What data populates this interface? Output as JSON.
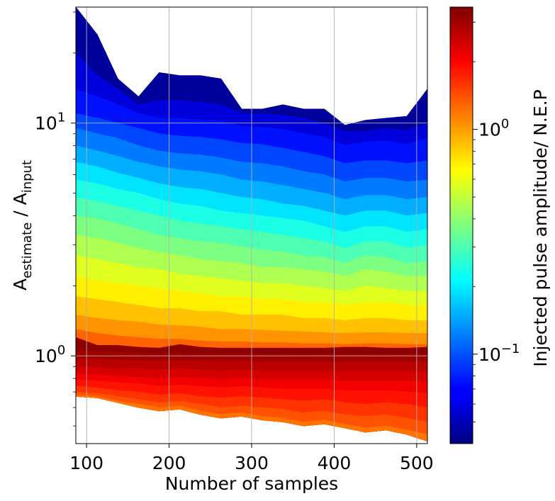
{
  "chart_data": {
    "type": "contour",
    "xlabel": "Number of samples",
    "ylabel": {
      "base": "A",
      "sub1": "estimate",
      "mid": " / A",
      "sub2": "input"
    },
    "x_ticks": [
      100,
      200,
      300,
      400,
      500
    ],
    "x_tick_labels": [
      "100",
      "200",
      "300",
      "400",
      "500"
    ],
    "xlim": [
      87,
      513
    ],
    "ylim": [
      0.42,
      31.5
    ],
    "yscale": "log",
    "y_ticks": [
      1,
      10
    ],
    "y_tick_labels": [
      {
        "base": "10",
        "exp": "0"
      },
      {
        "base": "10",
        "exp": "1"
      }
    ],
    "grid": true,
    "colorbar": {
      "label": "Injected pulse amplitude/ N.E.P",
      "scale": "log",
      "range": [
        0.04,
        3.5
      ],
      "colormap": "jet",
      "tick_labels": [
        {
          "base": "10",
          "exp": "0",
          "value": 1.0
        },
        {
          "base": "10",
          "exp": "−1",
          "value": 0.1
        }
      ]
    },
    "x": [
      87,
      113,
      138,
      163,
      188,
      213,
      238,
      263,
      288,
      313,
      338,
      363,
      388,
      413,
      438,
      463,
      488,
      513
    ],
    "upper_boundary": [
      31.5,
      24,
      15.5,
      13,
      16.5,
      16,
      16,
      15.5,
      11.5,
      11.5,
      12,
      11.5,
      11.5,
      9.8,
      10.3,
      10.5,
      10.7,
      14
    ],
    "lower_boundary": [
      0.67,
      0.66,
      0.63,
      0.6,
      0.58,
      0.59,
      0.56,
      0.54,
      0.55,
      0.53,
      0.52,
      0.5,
      0.51,
      0.49,
      0.47,
      0.48,
      0.46,
      0.43
    ],
    "clip_level": [
      1.2,
      1.11,
      1.11,
      1.09,
      1.08,
      1.12,
      1.09,
      1.08,
      1.08,
      1.08,
      1.08,
      1.08,
      1.08,
      1.09,
      1.09,
      1.08,
      1.08,
      1.09
    ],
    "contour_levels": [
      {
        "amp": 0.045,
        "y": [
          31.5,
          24,
          15.5,
          13,
          16.5,
          16,
          16,
          15.5,
          11.5,
          11.5,
          12,
          11.5,
          11.5,
          9.8,
          10.3,
          10.5,
          10.7,
          14
        ]
      },
      {
        "amp": 0.06,
        "y": [
          20,
          16,
          14,
          12,
          12.5,
          12.5,
          12.3,
          12,
          11,
          11,
          10.8,
          10.5,
          10,
          9.2,
          9.2,
          9.5,
          9.3,
          10
        ]
      },
      {
        "amp": 0.075,
        "y": [
          14,
          13,
          12,
          11,
          10.5,
          10.5,
          10.3,
          10.2,
          9.7,
          9.6,
          9.4,
          9,
          8.7,
          8,
          8.3,
          8.4,
          8.1,
          8.6
        ]
      },
      {
        "amp": 0.095,
        "y": [
          11,
          10.5,
          10,
          9.5,
          9,
          8.8,
          8.7,
          8.5,
          8.2,
          8.1,
          7.8,
          7.5,
          7.2,
          6.7,
          6.9,
          6.9,
          6.7,
          6.9
        ]
      },
      {
        "amp": 0.12,
        "y": [
          9.5,
          9,
          8.6,
          8,
          7.6,
          7.4,
          7.3,
          7.1,
          6.8,
          6.7,
          6.5,
          6.2,
          6,
          5.6,
          5.8,
          5.8,
          5.6,
          5.7
        ]
      },
      {
        "amp": 0.15,
        "y": [
          8,
          7.6,
          7.2,
          6.8,
          6.5,
          6.3,
          6.2,
          6,
          5.7,
          5.6,
          5.4,
          5.2,
          5,
          4.7,
          4.9,
          4.9,
          4.7,
          4.8
        ]
      },
      {
        "amp": 0.19,
        "y": [
          6.8,
          6.5,
          6.1,
          5.8,
          5.5,
          5.3,
          5.2,
          5,
          4.8,
          4.7,
          4.5,
          4.4,
          4.2,
          4,
          4.2,
          4.2,
          4,
          4.1
        ]
      },
      {
        "amp": 0.24,
        "y": [
          5.7,
          5.5,
          5.2,
          5,
          4.7,
          4.5,
          4.4,
          4.2,
          4.1,
          4,
          3.9,
          3.8,
          3.6,
          3.4,
          3.6,
          3.6,
          3.4,
          3.5
        ]
      },
      {
        "amp": 0.3,
        "y": [
          4.8,
          4.6,
          4.4,
          4.2,
          4,
          3.8,
          3.7,
          3.6,
          3.5,
          3.4,
          3.3,
          3.2,
          3.1,
          2.9,
          3.1,
          3.1,
          2.9,
          3
        ]
      },
      {
        "amp": 0.37,
        "y": [
          4,
          3.9,
          3.7,
          3.5,
          3.3,
          3.2,
          3.1,
          3.05,
          2.95,
          2.85,
          2.8,
          2.7,
          2.65,
          2.5,
          2.7,
          2.65,
          2.5,
          2.55
        ]
      },
      {
        "amp": 0.46,
        "y": [
          3.3,
          3.2,
          3.05,
          2.9,
          2.8,
          2.7,
          2.6,
          2.55,
          2.5,
          2.4,
          2.4,
          2.35,
          2.3,
          2.2,
          2.35,
          2.3,
          2.2,
          2.2
        ]
      },
      {
        "amp": 0.57,
        "y": [
          2.7,
          2.6,
          2.5,
          2.4,
          2.35,
          2.25,
          2.2,
          2.15,
          2.1,
          2.05,
          2.05,
          2,
          1.95,
          1.9,
          2,
          1.95,
          1.9,
          1.9
        ]
      },
      {
        "amp": 0.7,
        "y": [
          2.2,
          2.1,
          2.05,
          2,
          1.95,
          1.9,
          1.85,
          1.8,
          1.8,
          1.75,
          1.75,
          1.7,
          1.7,
          1.65,
          1.7,
          1.7,
          1.65,
          1.65
        ]
      },
      {
        "amp": 0.86,
        "y": [
          1.8,
          1.75,
          1.7,
          1.65,
          1.6,
          1.6,
          1.55,
          1.55,
          1.5,
          1.5,
          1.5,
          1.45,
          1.45,
          1.42,
          1.45,
          1.45,
          1.42,
          1.42
        ]
      },
      {
        "amp": 1.05,
        "y": [
          1.5,
          1.45,
          1.42,
          1.4,
          1.36,
          1.35,
          1.33,
          1.3,
          1.3,
          1.29,
          1.28,
          1.27,
          1.26,
          1.25,
          1.26,
          1.26,
          1.25,
          1.25
        ]
      },
      {
        "amp": 1.3,
        "y": [
          1.3,
          1.25,
          1.22,
          1.2,
          1.18,
          1.18,
          1.16,
          1.15,
          1.15,
          1.14,
          1.14,
          1.13,
          1.13,
          1.12,
          1.13,
          1.13,
          1.12,
          1.12
        ]
      },
      {
        "amp": 3.3,
        "y": [
          1.2,
          1.11,
          1.11,
          1.09,
          1.08,
          1.12,
          1.09,
          1.08,
          1.08,
          1.08,
          1.08,
          1.08,
          1.08,
          1.09,
          1.09,
          1.08,
          1.08,
          1.09
        ]
      },
      {
        "amp": 3.0,
        "y": [
          1.05,
          1.04,
          1.04,
          1.03,
          1.02,
          1.03,
          1.02,
          1.02,
          1.02,
          1.02,
          1.02,
          1.02,
          1.02,
          1.02,
          1.02,
          1.02,
          1.02,
          1.02
        ]
      },
      {
        "amp": 2.7,
        "y": [
          0.97,
          0.96,
          0.96,
          0.95,
          0.95,
          0.95,
          0.95,
          0.94,
          0.95,
          0.94,
          0.94,
          0.94,
          0.94,
          0.94,
          0.94,
          0.94,
          0.94,
          0.94
        ]
      },
      {
        "amp": 2.4,
        "y": [
          0.9,
          0.89,
          0.88,
          0.88,
          0.87,
          0.88,
          0.87,
          0.86,
          0.87,
          0.86,
          0.86,
          0.86,
          0.86,
          0.86,
          0.86,
          0.86,
          0.86,
          0.85
        ]
      },
      {
        "amp": 2.1,
        "y": [
          0.84,
          0.83,
          0.82,
          0.81,
          0.8,
          0.81,
          0.8,
          0.79,
          0.8,
          0.79,
          0.79,
          0.79,
          0.79,
          0.78,
          0.78,
          0.78,
          0.78,
          0.77
        ]
      },
      {
        "amp": 1.85,
        "y": [
          0.79,
          0.78,
          0.77,
          0.76,
          0.74,
          0.75,
          0.74,
          0.73,
          0.74,
          0.73,
          0.72,
          0.72,
          0.72,
          0.71,
          0.71,
          0.71,
          0.7,
          0.69
        ]
      },
      {
        "amp": 1.6,
        "y": [
          0.74,
          0.73,
          0.71,
          0.7,
          0.68,
          0.69,
          0.67,
          0.66,
          0.67,
          0.66,
          0.65,
          0.64,
          0.65,
          0.63,
          0.62,
          0.63,
          0.62,
          0.6
        ]
      },
      {
        "amp": 1.4,
        "y": [
          0.7,
          0.69,
          0.67,
          0.65,
          0.63,
          0.64,
          0.62,
          0.6,
          0.61,
          0.6,
          0.59,
          0.57,
          0.58,
          0.56,
          0.55,
          0.56,
          0.54,
          0.52
        ]
      },
      {
        "amp": 1.2,
        "y": [
          0.68,
          0.67,
          0.64,
          0.62,
          0.6,
          0.61,
          0.58,
          0.56,
          0.57,
          0.55,
          0.54,
          0.52,
          0.53,
          0.51,
          0.49,
          0.5,
          0.48,
          0.46
        ]
      }
    ]
  }
}
